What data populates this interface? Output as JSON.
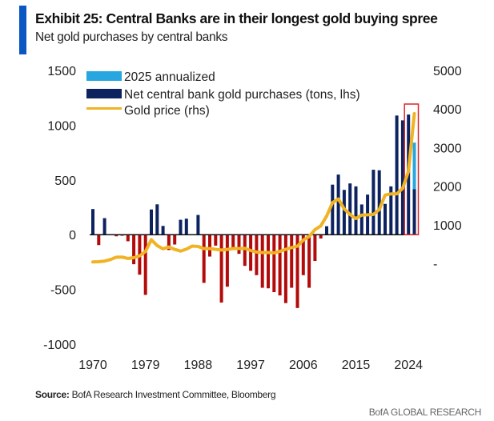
{
  "header": {
    "title": "Exhibit 25: Central Banks are in their longest gold buying spree",
    "subtitle": "Net gold purchases by central banks"
  },
  "footer": {
    "source_label": "Source:",
    "source_text": " BofA Research Investment Committee, Bloomberg",
    "brand": "BofA GLOBAL RESEARCH"
  },
  "chart_data": {
    "type": "bar",
    "title": "Exhibit 25: Central Banks are in their longest gold buying spree",
    "subtitle": "Net gold purchases by central banks",
    "x": [
      1970,
      1971,
      1972,
      1973,
      1974,
      1975,
      1976,
      1977,
      1978,
      1979,
      1980,
      1981,
      1982,
      1983,
      1984,
      1985,
      1986,
      1987,
      1988,
      1989,
      1990,
      1991,
      1992,
      1993,
      1994,
      1995,
      1996,
      1997,
      1998,
      1999,
      2000,
      2001,
      2002,
      2003,
      2004,
      2005,
      2006,
      2007,
      2008,
      2009,
      2010,
      2011,
      2012,
      2013,
      2014,
      2015,
      2016,
      2017,
      2018,
      2019,
      2020,
      2021,
      2022,
      2023,
      2024,
      2025
    ],
    "x_ticks": [
      "1970",
      "1979",
      "1988",
      "1997",
      "2006",
      "2015",
      "2024"
    ],
    "y_left": {
      "lim": [
        -1000,
        1500
      ],
      "ticks": [
        "1500",
        "1000",
        "500",
        "0",
        "-500",
        "-1000"
      ]
    },
    "y_right": {
      "lim": [
        0,
        5000
      ],
      "ticks": [
        "5000",
        "4000",
        "3000",
        "2000",
        "1000",
        "-"
      ]
    },
    "legend_placement": "top-left",
    "series": [
      {
        "name": "2025 annualized",
        "type": "bar",
        "axis": "left",
        "color": "#27a6e0",
        "points": [
          {
            "x": 2025,
            "y": 841
          }
        ]
      },
      {
        "name": "Net central bank gold purchases (tons, lhs)",
        "type": "bar",
        "axis": "left",
        "color_positive": "#0c2360",
        "color_negative": "#b30b0b",
        "values": [
          234,
          -95,
          151,
          -5,
          -15,
          -10,
          -60,
          -270,
          -365,
          -550,
          230,
          277,
          80,
          -140,
          -90,
          136,
          146,
          -5,
          180,
          -440,
          -200,
          -100,
          -620,
          -475,
          -140,
          -175,
          -285,
          -330,
          -370,
          -485,
          -490,
          -525,
          -555,
          -625,
          -485,
          -670,
          -370,
          -485,
          -240,
          -35,
          77,
          457,
          549,
          409,
          468,
          441,
          276,
          366,
          593,
          588,
          281,
          441,
          1088,
          1044,
          1097,
          415
        ]
      },
      {
        "name": "Gold price (rhs)",
        "type": "line",
        "axis": "right",
        "color": "#f0b323",
        "values": [
          36,
          41,
          58,
          97,
          159,
          161,
          125,
          148,
          193,
          307,
          612,
          460,
          376,
          424,
          361,
          317,
          368,
          447,
          437,
          381,
          383,
          362,
          344,
          360,
          384,
          384,
          388,
          331,
          294,
          279,
          279,
          271,
          310,
          363,
          409,
          444,
          603,
          695,
          872,
          972,
          1225,
          1572,
          1669,
          1411,
          1266,
          1160,
          1251,
          1257,
          1268,
          1393,
          1770,
          1799,
          1800,
          1943,
          2386,
          3880
        ]
      }
    ],
    "highlight": {
      "years": [
        2024,
        2025
      ],
      "color": "#d9262e"
    }
  }
}
